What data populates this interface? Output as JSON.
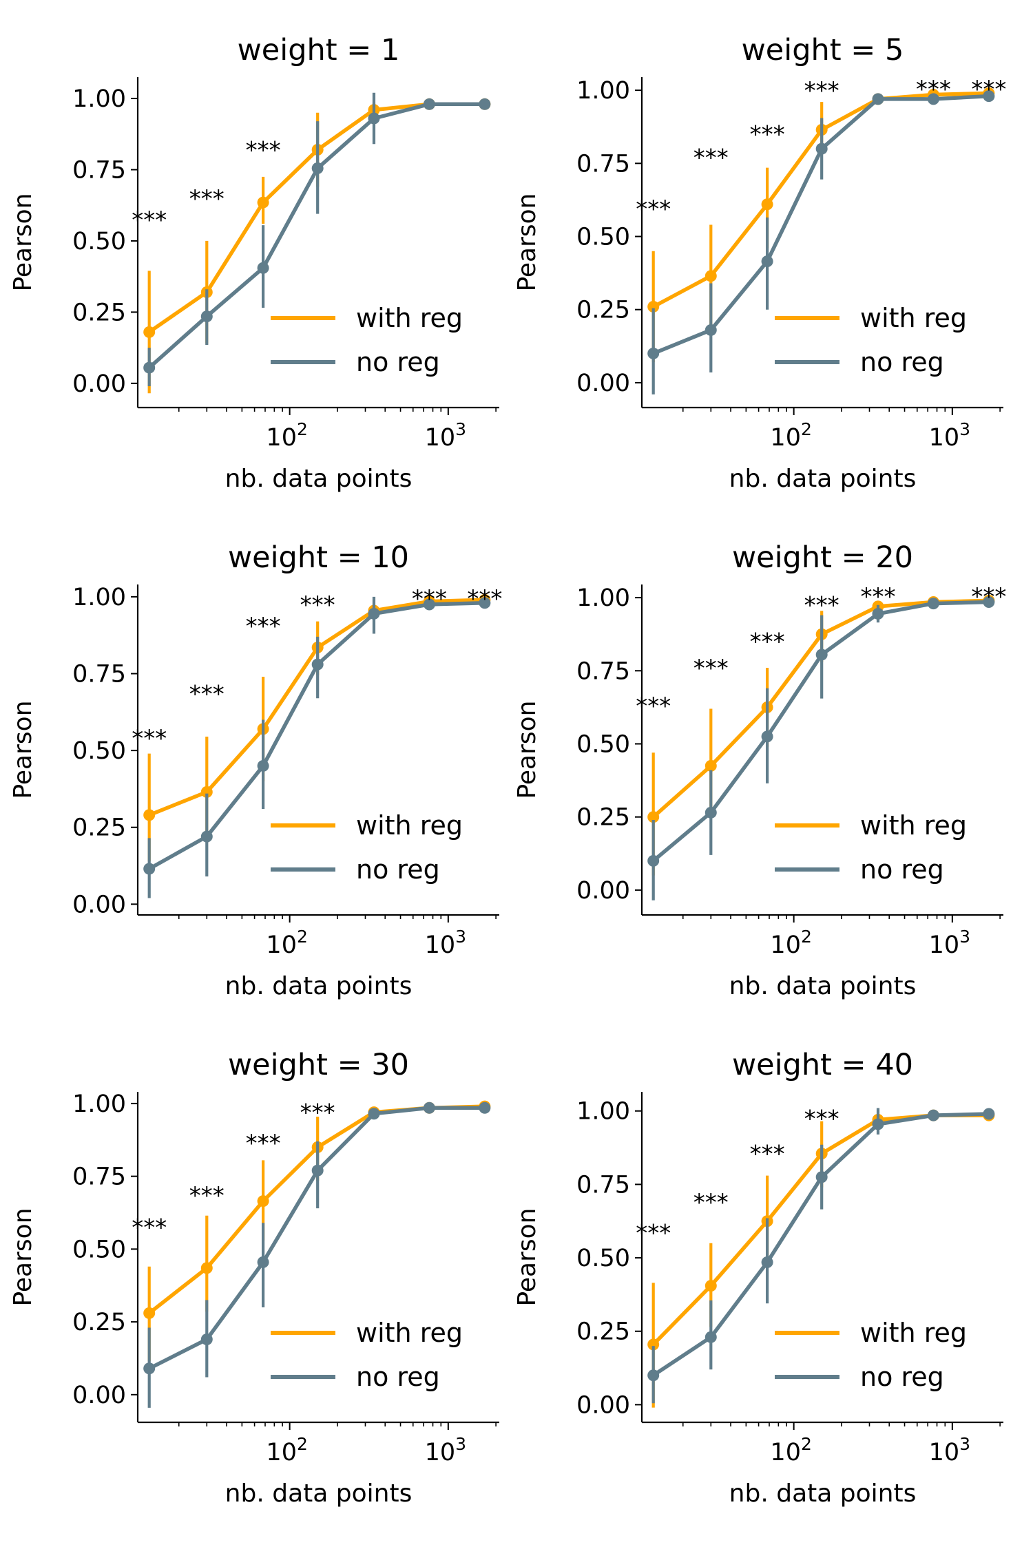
{
  "chart_data": [
    {
      "type": "line",
      "title": "weight = 1",
      "xlabel": "nb. data points",
      "ylabel": "Pearson",
      "x_scale": "log",
      "x": [
        13,
        30,
        68,
        150,
        340,
        760,
        1700
      ],
      "xlim": [
        11,
        2100
      ],
      "ylim": [
        -0.085,
        1.075
      ],
      "yticks": [
        0.0,
        0.25,
        0.5,
        0.75,
        1.0
      ],
      "ytick_labels": [
        "0.00",
        "0.25",
        "0.50",
        "0.75",
        "1.00"
      ],
      "xticks": [
        100,
        1000
      ],
      "xtick_labels": [
        {
          "base": "10",
          "exp": "2"
        },
        {
          "base": "10",
          "exp": "3"
        }
      ],
      "legend": {
        "placement": "lower-right",
        "entries": [
          "with reg",
          "no reg"
        ]
      },
      "series": [
        {
          "name": "with reg",
          "color": "#FFA500",
          "values": [
            0.18,
            0.32,
            0.635,
            0.82,
            0.96,
            0.98,
            0.98
          ],
          "err_low": [
            -0.035,
            0.14,
            0.56,
            0.69,
            0.93,
            0.97,
            0.975
          ],
          "err_high": [
            0.395,
            0.5,
            0.725,
            0.95,
            0.985,
            0.99,
            0.99
          ]
        },
        {
          "name": "no reg",
          "color": "#607D8B",
          "values": [
            0.055,
            0.235,
            0.405,
            0.755,
            0.93,
            0.98,
            0.98
          ],
          "err_low": [
            -0.01,
            0.135,
            0.265,
            0.595,
            0.84,
            0.965,
            0.97
          ],
          "err_high": [
            0.125,
            0.33,
            0.555,
            0.92,
            1.02,
            0.99,
            0.99
          ]
        }
      ],
      "annotations": [
        {
          "x": 13,
          "y": 0.58,
          "text": "***"
        },
        {
          "x": 30,
          "y": 0.655,
          "text": "***"
        },
        {
          "x": 68,
          "y": 0.825,
          "text": "***"
        }
      ]
    },
    {
      "type": "line",
      "title": "weight = 5",
      "xlabel": "nb. data points",
      "ylabel": "Pearson",
      "x_scale": "log",
      "x": [
        13,
        30,
        68,
        150,
        340,
        760,
        1700
      ],
      "xlim": [
        11,
        2100
      ],
      "ylim": [
        -0.085,
        1.045
      ],
      "yticks": [
        0.0,
        0.25,
        0.5,
        0.75,
        1.0
      ],
      "ytick_labels": [
        "0.00",
        "0.25",
        "0.50",
        "0.75",
        "1.00"
      ],
      "xticks": [
        100,
        1000
      ],
      "xtick_labels": [
        {
          "base": "10",
          "exp": "2"
        },
        {
          "base": "10",
          "exp": "3"
        }
      ],
      "legend": {
        "placement": "lower-right",
        "entries": [
          "with reg",
          "no reg"
        ]
      },
      "series": [
        {
          "name": "with reg",
          "color": "#FFA500",
          "values": [
            0.26,
            0.365,
            0.61,
            0.865,
            0.97,
            0.985,
            0.99
          ],
          "err_low": [
            0.07,
            0.19,
            0.46,
            0.78,
            0.955,
            0.975,
            0.98
          ],
          "err_high": [
            0.45,
            0.54,
            0.735,
            0.96,
            0.98,
            0.995,
            0.995
          ]
        },
        {
          "name": "no reg",
          "color": "#607D8B",
          "values": [
            0.1,
            0.18,
            0.415,
            0.8,
            0.97,
            0.97,
            0.98
          ],
          "err_low": [
            -0.04,
            0.035,
            0.25,
            0.695,
            0.955,
            0.96,
            0.97
          ],
          "err_high": [
            0.255,
            0.34,
            0.565,
            0.905,
            0.985,
            0.985,
            0.99
          ]
        }
      ],
      "annotations": [
        {
          "x": 13,
          "y": 0.6,
          "text": "***"
        },
        {
          "x": 30,
          "y": 0.775,
          "text": "***"
        },
        {
          "x": 68,
          "y": 0.855,
          "text": "***"
        },
        {
          "x": 150,
          "y": 1.005,
          "text": "***"
        },
        {
          "x": 760,
          "y": 1.01,
          "text": "***"
        },
        {
          "x": 1700,
          "y": 1.01,
          "text": "***"
        }
      ]
    },
    {
      "type": "line",
      "title": "weight = 10",
      "xlabel": "nb. data points",
      "ylabel": "Pearson",
      "x_scale": "log",
      "x": [
        13,
        30,
        68,
        150,
        340,
        760,
        1700
      ],
      "xlim": [
        11,
        2100
      ],
      "ylim": [
        -0.035,
        1.04
      ],
      "yticks": [
        0.0,
        0.25,
        0.5,
        0.75,
        1.0
      ],
      "ytick_labels": [
        "0.00",
        "0.25",
        "0.50",
        "0.75",
        "1.00"
      ],
      "xticks": [
        100,
        1000
      ],
      "xtick_labels": [
        {
          "base": "10",
          "exp": "2"
        },
        {
          "base": "10",
          "exp": "3"
        }
      ],
      "legend": {
        "placement": "lower-right",
        "entries": [
          "with reg",
          "no reg"
        ]
      },
      "series": [
        {
          "name": "with reg",
          "color": "#FFA500",
          "values": [
            0.29,
            0.365,
            0.57,
            0.835,
            0.955,
            0.985,
            0.99
          ],
          "err_low": [
            0.14,
            0.21,
            0.4,
            0.745,
            0.93,
            0.975,
            0.98
          ],
          "err_high": [
            0.49,
            0.545,
            0.74,
            0.92,
            0.975,
            0.995,
            0.995
          ]
        },
        {
          "name": "no reg",
          "color": "#607D8B",
          "values": [
            0.115,
            0.22,
            0.45,
            0.78,
            0.945,
            0.975,
            0.98
          ],
          "err_low": [
            0.02,
            0.09,
            0.31,
            0.67,
            0.88,
            0.965,
            0.97
          ],
          "err_high": [
            0.215,
            0.36,
            0.6,
            0.87,
            1.0,
            0.99,
            0.99
          ]
        }
      ],
      "annotations": [
        {
          "x": 13,
          "y": 0.545,
          "text": "***"
        },
        {
          "x": 30,
          "y": 0.69,
          "text": "***"
        },
        {
          "x": 68,
          "y": 0.91,
          "text": "***"
        },
        {
          "x": 150,
          "y": 0.98,
          "text": "***"
        },
        {
          "x": 760,
          "y": 1.0,
          "text": "***"
        },
        {
          "x": 1700,
          "y": 1.0,
          "text": "***"
        }
      ]
    },
    {
      "type": "line",
      "title": "weight = 20",
      "xlabel": "nb. data points",
      "ylabel": "Pearson",
      "x_scale": "log",
      "x": [
        13,
        30,
        68,
        150,
        340,
        760,
        1700
      ],
      "xlim": [
        11,
        2100
      ],
      "ylim": [
        -0.085,
        1.045
      ],
      "yticks": [
        0.0,
        0.25,
        0.5,
        0.75,
        1.0
      ],
      "ytick_labels": [
        "0.00",
        "0.25",
        "0.50",
        "0.75",
        "1.00"
      ],
      "xticks": [
        100,
        1000
      ],
      "xtick_labels": [
        {
          "base": "10",
          "exp": "2"
        },
        {
          "base": "10",
          "exp": "3"
        }
      ],
      "legend": {
        "placement": "lower-right",
        "entries": [
          "with reg",
          "no reg"
        ]
      },
      "series": [
        {
          "name": "with reg",
          "color": "#FFA500",
          "values": [
            0.25,
            0.425,
            0.625,
            0.875,
            0.97,
            0.985,
            0.99
          ],
          "err_low": [
            0.05,
            0.26,
            0.49,
            0.78,
            0.955,
            0.975,
            0.98
          ],
          "err_high": [
            0.47,
            0.62,
            0.76,
            0.955,
            0.98,
            0.995,
            0.995
          ]
        },
        {
          "name": "no reg",
          "color": "#607D8B",
          "values": [
            0.1,
            0.265,
            0.525,
            0.805,
            0.945,
            0.98,
            0.985
          ],
          "err_low": [
            -0.035,
            0.12,
            0.365,
            0.655,
            0.915,
            0.97,
            0.975
          ],
          "err_high": [
            0.24,
            0.41,
            0.69,
            0.94,
            0.975,
            0.99,
            0.995
          ]
        }
      ],
      "annotations": [
        {
          "x": 13,
          "y": 0.635,
          "text": "***"
        },
        {
          "x": 30,
          "y": 0.765,
          "text": "***"
        },
        {
          "x": 68,
          "y": 0.855,
          "text": "***"
        },
        {
          "x": 150,
          "y": 0.98,
          "text": "***"
        },
        {
          "x": 340,
          "y": 1.01,
          "text": "***"
        },
        {
          "x": 1700,
          "y": 1.01,
          "text": "***"
        }
      ]
    },
    {
      "type": "line",
      "title": "weight = 30",
      "xlabel": "nb. data points",
      "ylabel": "Pearson",
      "x_scale": "log",
      "x": [
        13,
        30,
        68,
        150,
        340,
        760,
        1700
      ],
      "xlim": [
        11,
        2100
      ],
      "ylim": [
        -0.095,
        1.04
      ],
      "yticks": [
        0.0,
        0.25,
        0.5,
        0.75,
        1.0
      ],
      "ytick_labels": [
        "0.00",
        "0.25",
        "0.50",
        "0.75",
        "1.00"
      ],
      "xticks": [
        100,
        1000
      ],
      "xtick_labels": [
        {
          "base": "10",
          "exp": "2"
        },
        {
          "base": "10",
          "exp": "3"
        }
      ],
      "legend": {
        "placement": "lower-right",
        "entries": [
          "with reg",
          "no reg"
        ]
      },
      "series": [
        {
          "name": "with reg",
          "color": "#FFA500",
          "values": [
            0.28,
            0.435,
            0.665,
            0.85,
            0.97,
            0.985,
            0.99
          ],
          "err_low": [
            0.115,
            0.285,
            0.53,
            0.735,
            0.955,
            0.975,
            0.98
          ],
          "err_high": [
            0.44,
            0.615,
            0.805,
            0.955,
            0.985,
            0.995,
            0.995
          ]
        },
        {
          "name": "no reg",
          "color": "#607D8B",
          "values": [
            0.09,
            0.19,
            0.455,
            0.77,
            0.965,
            0.985,
            0.985
          ],
          "err_low": [
            -0.045,
            0.06,
            0.3,
            0.64,
            0.955,
            0.975,
            0.975
          ],
          "err_high": [
            0.23,
            0.325,
            0.59,
            0.87,
            0.975,
            0.995,
            0.995
          ]
        }
      ],
      "annotations": [
        {
          "x": 13,
          "y": 0.58,
          "text": "***"
        },
        {
          "x": 30,
          "y": 0.69,
          "text": "***"
        },
        {
          "x": 68,
          "y": 0.87,
          "text": "***"
        },
        {
          "x": 150,
          "y": 0.975,
          "text": "***"
        }
      ]
    },
    {
      "type": "line",
      "title": "weight = 40",
      "xlabel": "nb. data points",
      "ylabel": "Pearson",
      "x_scale": "log",
      "x": [
        13,
        30,
        68,
        150,
        340,
        760,
        1700
      ],
      "xlim": [
        11,
        2100
      ],
      "ylim": [
        -0.06,
        1.065
      ],
      "yticks": [
        0.0,
        0.25,
        0.5,
        0.75,
        1.0
      ],
      "ytick_labels": [
        "0.00",
        "0.25",
        "0.50",
        "0.75",
        "1.00"
      ],
      "xticks": [
        100,
        1000
      ],
      "xtick_labels": [
        {
          "base": "10",
          "exp": "2"
        },
        {
          "base": "10",
          "exp": "3"
        }
      ],
      "legend": {
        "placement": "lower-right",
        "entries": [
          "with reg",
          "no reg"
        ]
      },
      "series": [
        {
          "name": "with reg",
          "color": "#FFA500",
          "values": [
            0.205,
            0.405,
            0.625,
            0.855,
            0.97,
            0.985,
            0.985
          ],
          "err_low": [
            -0.01,
            0.265,
            0.48,
            0.74,
            0.95,
            0.975,
            0.975
          ],
          "err_high": [
            0.415,
            0.55,
            0.78,
            0.965,
            0.99,
            0.995,
            0.995
          ]
        },
        {
          "name": "no reg",
          "color": "#607D8B",
          "values": [
            0.1,
            0.23,
            0.485,
            0.775,
            0.955,
            0.985,
            0.99
          ],
          "err_low": [
            0.005,
            0.12,
            0.345,
            0.665,
            0.92,
            0.975,
            0.98
          ],
          "err_high": [
            0.2,
            0.355,
            0.635,
            0.885,
            1.01,
            0.995,
            0.995
          ]
        }
      ],
      "annotations": [
        {
          "x": 13,
          "y": 0.59,
          "text": "***"
        },
        {
          "x": 30,
          "y": 0.695,
          "text": "***"
        },
        {
          "x": 68,
          "y": 0.86,
          "text": "***"
        },
        {
          "x": 150,
          "y": 0.98,
          "text": "***"
        }
      ]
    }
  ]
}
